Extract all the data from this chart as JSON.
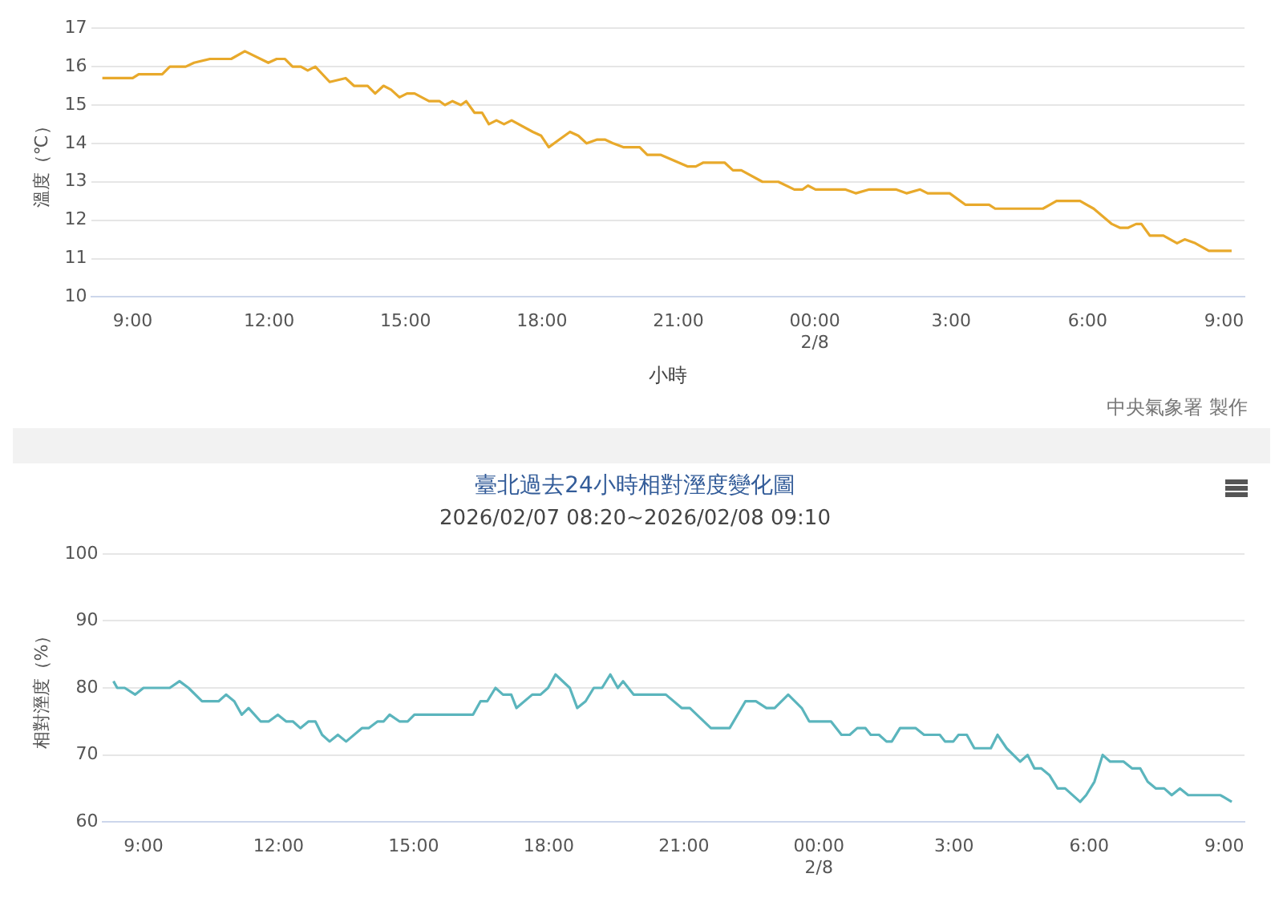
{
  "chart_data": [
    {
      "type": "line",
      "xlabel": "小時",
      "ylabel": "溫度（℃）",
      "annotations": [
        "中央氣象署 製作"
      ],
      "grid": "y",
      "xlim": [
        "2026-02-07T08:06",
        "2026-02-08T09:27"
      ],
      "ylim": [
        10,
        17
      ],
      "yticks": [
        10,
        11,
        12,
        13,
        14,
        15,
        16,
        17
      ],
      "xticks": [
        {
          "value": "2026-02-07T09:00",
          "label": "9:00"
        },
        {
          "value": "2026-02-07T12:00",
          "label": "12:00"
        },
        {
          "value": "2026-02-07T15:00",
          "label": "15:00"
        },
        {
          "value": "2026-02-07T18:00",
          "label": "18:00"
        },
        {
          "value": "2026-02-07T21:00",
          "label": "21:00"
        },
        {
          "value": "2026-02-08T00:00",
          "label": "00:00\n2/8"
        },
        {
          "value": "2026-02-08T03:00",
          "label": "3:00"
        },
        {
          "value": "2026-02-08T06:00",
          "label": "6:00"
        },
        {
          "value": "2026-02-08T09:00",
          "label": "9:00"
        }
      ],
      "x": [
        "2026-02-07T08:20",
        "2026-02-07T09:00",
        "2026-02-07T09:08",
        "2026-02-07T09:39",
        "2026-02-07T09:49",
        "2026-02-07T10:10",
        "2026-02-07T10:21",
        "2026-02-07T10:42",
        "2026-02-07T11:10",
        "2026-02-07T11:28",
        "2026-02-07T11:59",
        "2026-02-07T12:10",
        "2026-02-07T12:21",
        "2026-02-07T12:31",
        "2026-02-07T12:42",
        "2026-02-07T12:51",
        "2026-02-07T13:01",
        "2026-02-07T13:20",
        "2026-02-07T13:41",
        "2026-02-07T13:52",
        "2026-02-07T14:10",
        "2026-02-07T14:20",
        "2026-02-07T14:31",
        "2026-02-07T14:41",
        "2026-02-07T14:52",
        "2026-02-07T15:02",
        "2026-02-07T15:12",
        "2026-02-07T15:31",
        "2026-02-07T15:45",
        "2026-02-07T15:52",
        "2026-02-07T16:02",
        "2026-02-07T16:13",
        "2026-02-07T16:20",
        "2026-02-07T16:31",
        "2026-02-07T16:41",
        "2026-02-07T16:50",
        "2026-02-07T17:00",
        "2026-02-07T17:10",
        "2026-02-07T17:20",
        "2026-02-07T17:48",
        "2026-02-07T17:59",
        "2026-02-07T18:09",
        "2026-02-07T18:23",
        "2026-02-07T18:37",
        "2026-02-07T18:48",
        "2026-02-07T18:59",
        "2026-02-07T19:13",
        "2026-02-07T19:23",
        "2026-02-07T19:34",
        "2026-02-07T19:48",
        "2026-02-07T20:09",
        "2026-02-07T20:19",
        "2026-02-07T20:37",
        "2026-02-07T21:12",
        "2026-02-07T21:23",
        "2026-02-07T21:33",
        "2026-02-07T22:01",
        "2026-02-07T22:12",
        "2026-02-07T22:23",
        "2026-02-07T22:51",
        "2026-02-07T23:12",
        "2026-02-07T23:33",
        "2026-02-07T23:44",
        "2026-02-07T23:51",
        "2026-02-08T00:01",
        "2026-02-08T00:40",
        "2026-02-08T00:54",
        "2026-02-08T01:12",
        "2026-02-08T01:47",
        "2026-02-08T02:01",
        "2026-02-08T02:19",
        "2026-02-08T02:29",
        "2026-02-08T02:58",
        "2026-02-08T03:19",
        "2026-02-08T03:50",
        "2026-02-08T03:58",
        "2026-02-08T05:01",
        "2026-02-08T05:19",
        "2026-02-08T05:50",
        "2026-02-08T06:08",
        "2026-02-08T06:32",
        "2026-02-08T06:43",
        "2026-02-08T06:53",
        "2026-02-08T07:04",
        "2026-02-08T07:11",
        "2026-02-08T07:22",
        "2026-02-08T07:40",
        "2026-02-08T07:58",
        "2026-02-08T08:08",
        "2026-02-08T08:22",
        "2026-02-08T08:40",
        "2026-02-08T09:10"
      ],
      "series": [
        {
          "color": "#e8a92b",
          "values": [
            15.7,
            15.7,
            15.8,
            15.8,
            16.0,
            16.0,
            16.1,
            16.2,
            16.2,
            16.4,
            16.1,
            16.2,
            16.2,
            16.0,
            16.0,
            15.9,
            16.0,
            15.6,
            15.7,
            15.5,
            15.5,
            15.3,
            15.5,
            15.4,
            15.2,
            15.3,
            15.3,
            15.1,
            15.1,
            15.0,
            15.1,
            15.0,
            15.1,
            14.8,
            14.8,
            14.5,
            14.6,
            14.5,
            14.6,
            14.3,
            14.2,
            13.9,
            14.1,
            14.3,
            14.2,
            14.0,
            14.1,
            14.1,
            14.0,
            13.9,
            13.9,
            13.7,
            13.7,
            13.4,
            13.4,
            13.5,
            13.5,
            13.3,
            13.3,
            13.0,
            13.0,
            12.8,
            12.8,
            12.9,
            12.8,
            12.8,
            12.7,
            12.8,
            12.8,
            12.7,
            12.8,
            12.7,
            12.7,
            12.4,
            12.4,
            12.3,
            12.3,
            12.5,
            12.5,
            12.3,
            11.9,
            11.8,
            11.8,
            11.9,
            11.9,
            11.6,
            11.6,
            11.4,
            11.5,
            11.4,
            11.2,
            11.2
          ]
        }
      ]
    },
    {
      "type": "line",
      "title": "臺北過去24小時相對溼度變化圖",
      "subtitle": "2026/02/07 08:20~2026/02/08 09:10",
      "ylabel": "相對溼度（%）",
      "grid": "y",
      "xlim": [
        "2026-02-07T08:06",
        "2026-02-08T09:27"
      ],
      "ylim": [
        60,
        100
      ],
      "yticks": [
        60,
        70,
        80,
        90,
        100
      ],
      "xticks": [
        {
          "value": "2026-02-07T09:00",
          "label": "9:00"
        },
        {
          "value": "2026-02-07T12:00",
          "label": "12:00"
        },
        {
          "value": "2026-02-07T15:00",
          "label": "15:00"
        },
        {
          "value": "2026-02-07T18:00",
          "label": "18:00"
        },
        {
          "value": "2026-02-07T21:00",
          "label": "21:00"
        },
        {
          "value": "2026-02-08T00:00",
          "label": "00:00\n2/8"
        },
        {
          "value": "2026-02-08T03:00",
          "label": "3:00"
        },
        {
          "value": "2026-02-08T06:00",
          "label": "6:00"
        },
        {
          "value": "2026-02-08T09:00",
          "label": "9:00"
        }
      ],
      "x": [
        "2026-02-07T08:20",
        "2026-02-07T08:25",
        "2026-02-07T08:35",
        "2026-02-07T08:49",
        "2026-02-07T09:00",
        "2026-02-07T09:35",
        "2026-02-07T09:48",
        "2026-02-07T10:00",
        "2026-02-07T10:18",
        "2026-02-07T10:40",
        "2026-02-07T10:50",
        "2026-02-07T11:01",
        "2026-02-07T11:11",
        "2026-02-07T11:20",
        "2026-02-07T11:36",
        "2026-02-07T11:47",
        "2026-02-07T11:59",
        "2026-02-07T12:10",
        "2026-02-07T12:19",
        "2026-02-07T12:29",
        "2026-02-07T12:40",
        "2026-02-07T12:49",
        "2026-02-07T12:58",
        "2026-02-07T13:08",
        "2026-02-07T13:19",
        "2026-02-07T13:30",
        "2026-02-07T13:51",
        "2026-02-07T14:00",
        "2026-02-07T14:12",
        "2026-02-07T14:20",
        "2026-02-07T14:28",
        "2026-02-07T14:41",
        "2026-02-07T14:52",
        "2026-02-07T15:01",
        "2026-02-07T16:19",
        "2026-02-07T16:29",
        "2026-02-07T16:38",
        "2026-02-07T16:49",
        "2026-02-07T16:59",
        "2026-02-07T17:10",
        "2026-02-07T17:17",
        "2026-02-07T17:38",
        "2026-02-07T17:49",
        "2026-02-07T17:59",
        "2026-02-07T18:09",
        "2026-02-07T18:28",
        "2026-02-07T18:38",
        "2026-02-07T18:49",
        "2026-02-07T19:00",
        "2026-02-07T19:11",
        "2026-02-07T19:22",
        "2026-02-07T19:32",
        "2026-02-07T19:39",
        "2026-02-07T19:53",
        "2026-02-07T20:36",
        "2026-02-07T20:57",
        "2026-02-07T21:08",
        "2026-02-07T21:36",
        "2026-02-07T22:01",
        "2026-02-07T22:22",
        "2026-02-07T22:36",
        "2026-02-07T22:50",
        "2026-02-07T23:01",
        "2026-02-07T23:19",
        "2026-02-07T23:37",
        "2026-02-07T23:47",
        "2026-02-08T00:16",
        "2026-02-08T00:30",
        "2026-02-08T00:41",
        "2026-02-08T00:51",
        "2026-02-08T01:02",
        "2026-02-08T01:09",
        "2026-02-08T01:20",
        "2026-02-08T01:30",
        "2026-02-08T01:37",
        "2026-02-08T01:48",
        "2026-02-08T02:09",
        "2026-02-08T02:20",
        "2026-02-08T02:41",
        "2026-02-08T02:48",
        "2026-02-08T02:59",
        "2026-02-08T03:06",
        "2026-02-08T03:17",
        "2026-02-08T03:27",
        "2026-02-08T03:49",
        "2026-02-08T03:58",
        "2026-02-08T04:10",
        "2026-02-08T04:28",
        "2026-02-08T04:38",
        "2026-02-08T04:47",
        "2026-02-08T04:56",
        "2026-02-08T05:07",
        "2026-02-08T05:18",
        "2026-02-08T05:28",
        "2026-02-08T05:48",
        "2026-02-08T05:56",
        "2026-02-08T06:07",
        "2026-02-08T06:18",
        "2026-02-08T06:28",
        "2026-02-08T06:46",
        "2026-02-08T06:57",
        "2026-02-08T07:08",
        "2026-02-08T07:18",
        "2026-02-08T07:29",
        "2026-02-08T07:40",
        "2026-02-08T07:50",
        "2026-02-08T08:01",
        "2026-02-08T08:12",
        "2026-02-08T08:55",
        "2026-02-08T09:10"
      ],
      "series": [
        {
          "color": "#5bb5bd",
          "values": [
            81,
            80,
            80,
            79,
            80,
            80,
            81,
            80,
            78,
            78,
            79,
            78,
            76,
            77,
            75,
            75,
            76,
            75,
            75,
            74,
            75,
            75,
            73,
            72,
            73,
            72,
            74,
            74,
            75,
            75,
            76,
            75,
            75,
            76,
            76,
            78,
            78,
            80,
            79,
            79,
            77,
            79,
            79,
            80,
            82,
            80,
            77,
            78,
            80,
            80,
            82,
            80,
            81,
            79,
            79,
            77,
            77,
            74,
            74,
            78,
            78,
            77,
            77,
            79,
            77,
            75,
            75,
            73,
            73,
            74,
            74,
            73,
            73,
            72,
            72,
            74,
            74,
            73,
            73,
            72,
            72,
            73,
            73,
            71,
            71,
            73,
            71,
            69,
            70,
            68,
            68,
            67,
            65,
            65,
            63,
            64,
            66,
            70,
            69,
            69,
            68,
            68,
            66,
            65,
            65,
            64,
            65,
            64,
            64,
            63
          ]
        }
      ]
    }
  ]
}
